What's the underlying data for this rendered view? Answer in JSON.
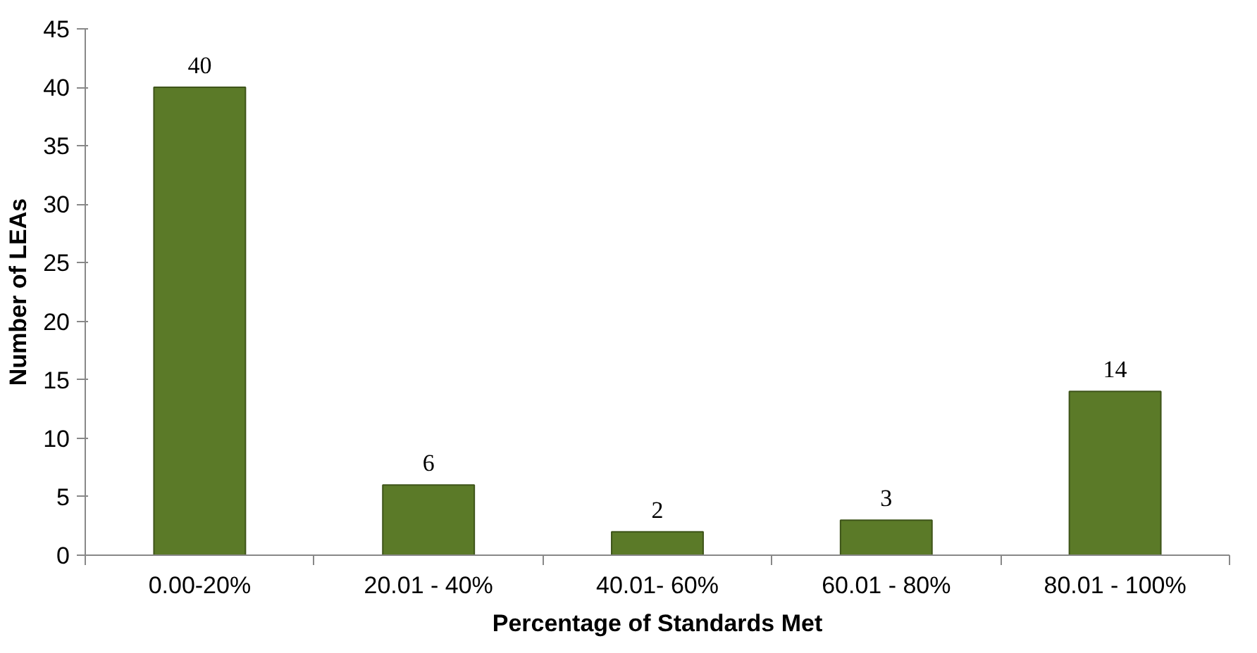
{
  "chart_data": {
    "type": "bar",
    "xlabel": "Percentage of Standards Met",
    "ylabel": "Number of LEAs",
    "categories": [
      "0.00-20%",
      "20.01 - 40%",
      "40.01- 60%",
      "60.01 - 80%",
      "80.01 - 100%"
    ],
    "values": [
      40,
      6,
      2,
      3,
      14
    ],
    "color": "#5b7a28",
    "ylim": [
      0,
      45
    ],
    "yticks": [
      0,
      5,
      10,
      15,
      20,
      25,
      30,
      35,
      40,
      45
    ],
    "grid": false,
    "data_labels": true
  }
}
